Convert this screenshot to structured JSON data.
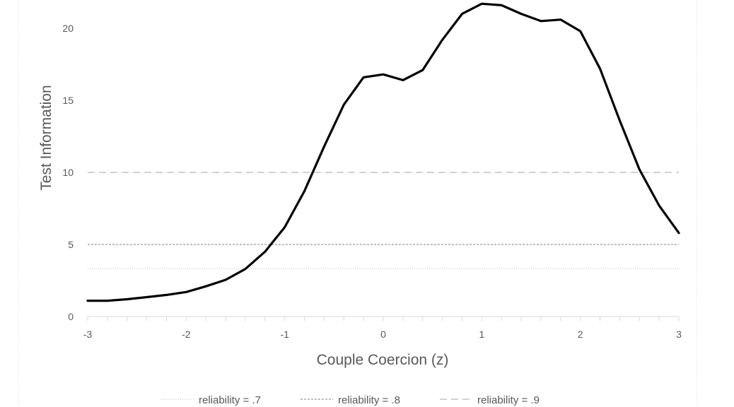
{
  "chart_data": {
    "type": "line",
    "title": "",
    "xlabel": "Couple Coercion (z)",
    "ylabel": "Test Information",
    "xlim": [
      -3,
      3
    ],
    "ylim": [
      0,
      22
    ],
    "x_ticks": [
      "-3",
      "-2",
      "-1",
      "0",
      "1",
      "2",
      "3"
    ],
    "y_ticks": [
      "0",
      "5",
      "10",
      "15",
      "20"
    ],
    "grid": false,
    "legend_position": "bottom",
    "series": [
      {
        "x": [
          -3.0,
          -2.8,
          -2.6,
          -2.4,
          -2.2,
          -2.0,
          -1.8,
          -1.6,
          -1.4,
          -1.2,
          -1.0,
          -0.8,
          -0.6,
          -0.4,
          -0.2,
          0.0,
          0.2,
          0.4,
          0.6,
          0.8,
          1.0,
          1.2,
          1.4,
          1.6,
          1.8,
          2.0,
          2.2,
          2.4,
          2.6,
          2.8,
          3.0
        ],
        "values": [
          1.1,
          1.1,
          1.2,
          1.35,
          1.5,
          1.7,
          2.1,
          2.55,
          3.3,
          4.5,
          6.2,
          8.7,
          11.8,
          14.7,
          16.6,
          16.8,
          16.4,
          17.1,
          19.2,
          21.0,
          21.7,
          21.6,
          21.0,
          20.5,
          20.6,
          19.8,
          17.2,
          13.6,
          10.2,
          7.7,
          5.8
        ],
        "color": "#000000"
      }
    ],
    "reference_lines": [
      {
        "name": "reliability = .7",
        "y": 3.33,
        "style": "dotted",
        "color": "#bfbfbf"
      },
      {
        "name": "reliability = .8",
        "y": 5,
        "style": "dashed-fine",
        "color": "#7f7f7f"
      },
      {
        "name": "reliability = .9",
        "y": 10,
        "style": "dashed-long",
        "color": "#a6a6a6"
      }
    ]
  }
}
